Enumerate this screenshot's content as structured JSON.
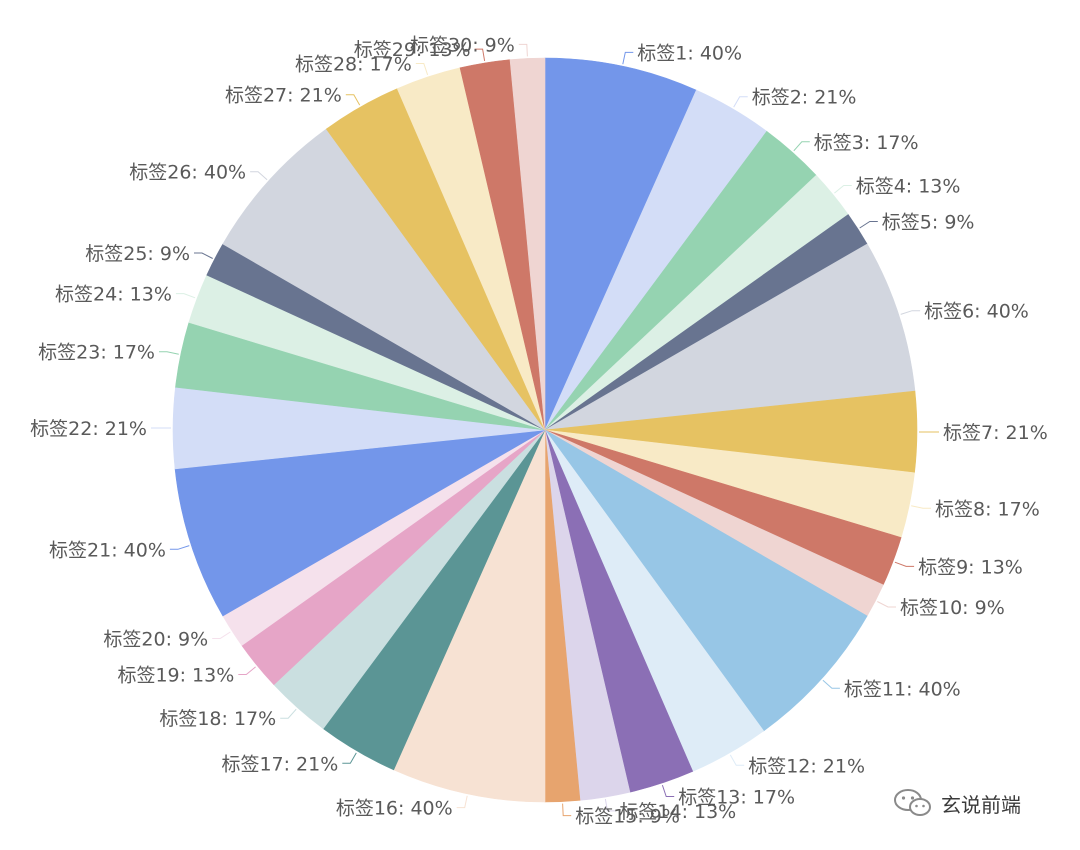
{
  "chart_data": {
    "type": "pie",
    "title": "",
    "label_format": "{name}: {percent}%",
    "slices": [
      {
        "name": "标签1",
        "percent": 40,
        "color": "#7396ea"
      },
      {
        "name": "标签2",
        "percent": 21,
        "color": "#d3ddf7"
      },
      {
        "name": "标签3",
        "percent": 17,
        "color": "#95d3b1"
      },
      {
        "name": "标签4",
        "percent": 13,
        "color": "#dcf0e5"
      },
      {
        "name": "标签5",
        "percent": 9,
        "color": "#687490"
      },
      {
        "name": "标签6",
        "percent": 40,
        "color": "#d2d6df"
      },
      {
        "name": "标签7",
        "percent": 21,
        "color": "#e6c262"
      },
      {
        "name": "标签8",
        "percent": 17,
        "color": "#f8eac6"
      },
      {
        "name": "标签9",
        "percent": 13,
        "color": "#ce7868"
      },
      {
        "name": "标签10",
        "percent": 9,
        "color": "#efd5d2"
      },
      {
        "name": "标签11",
        "percent": 40,
        "color": "#97c6e6"
      },
      {
        "name": "标签12",
        "percent": 21,
        "color": "#deecf7"
      },
      {
        "name": "标签13",
        "percent": 17,
        "color": "#8b6fb5"
      },
      {
        "name": "标签14",
        "percent": 13,
        "color": "#dcd5eb"
      },
      {
        "name": "标签15",
        "percent": 9,
        "color": "#e7a46e"
      },
      {
        "name": "标签16",
        "percent": 40,
        "color": "#f7e2d3"
      },
      {
        "name": "标签17",
        "percent": 21,
        "color": "#5b9595"
      },
      {
        "name": "标签18",
        "percent": 17,
        "color": "#cadfe0"
      },
      {
        "name": "标签19",
        "percent": 13,
        "color": "#e6a5c7"
      },
      {
        "name": "标签20",
        "percent": 9,
        "color": "#f5e1ec"
      },
      {
        "name": "标签21",
        "percent": 40,
        "color": "#7396ea"
      },
      {
        "name": "标签22",
        "percent": 21,
        "color": "#d3ddf7"
      },
      {
        "name": "标签23",
        "percent": 17,
        "color": "#95d3b1"
      },
      {
        "name": "标签24",
        "percent": 13,
        "color": "#dcf0e5"
      },
      {
        "name": "标签25",
        "percent": 9,
        "color": "#687490"
      },
      {
        "name": "标签26",
        "percent": 40,
        "color": "#d2d6df"
      },
      {
        "name": "标签27",
        "percent": 21,
        "color": "#e6c262"
      },
      {
        "name": "标签28",
        "percent": 17,
        "color": "#f8eac6"
      },
      {
        "name": "标签29",
        "percent": 13,
        "color": "#ce7868"
      },
      {
        "name": "标签30",
        "percent": 9,
        "color": "#efd5d2"
      }
    ]
  },
  "watermark": {
    "text": "玄说前端",
    "icon": "wechat-icon"
  }
}
